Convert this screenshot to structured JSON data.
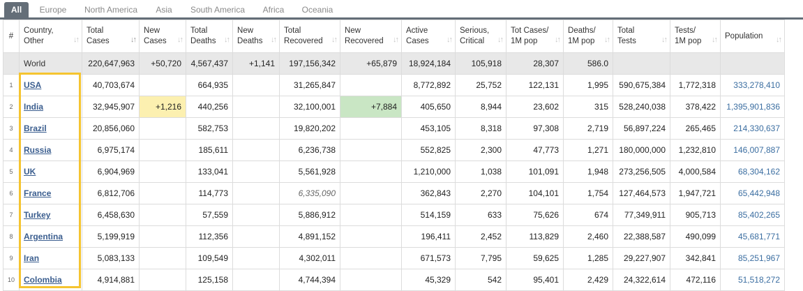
{
  "tabs": [
    "All",
    "Europe",
    "North America",
    "Asia",
    "South America",
    "Africa",
    "Oceania"
  ],
  "headers": {
    "rank": "#",
    "country": [
      "Country,",
      "Other"
    ],
    "total_cases": [
      "Total",
      "Cases"
    ],
    "new_cases": [
      "New",
      "Cases"
    ],
    "total_deaths": [
      "Total",
      "Deaths"
    ],
    "new_deaths": [
      "New",
      "Deaths"
    ],
    "total_recovered": [
      "Total",
      "Recovered"
    ],
    "new_recovered": [
      "New",
      "Recovered"
    ],
    "active_cases": [
      "Active",
      "Cases"
    ],
    "serious": [
      "Serious,",
      "Critical"
    ],
    "cases_per_m": [
      "Tot Cases/",
      "1M pop"
    ],
    "deaths_per_m": [
      "Deaths/",
      "1M pop"
    ],
    "total_tests": [
      "Total",
      "Tests"
    ],
    "tests_per_m": [
      "Tests/",
      "1M pop"
    ],
    "population": [
      "Population"
    ]
  },
  "world": {
    "country": "World",
    "total_cases": "220,647,963",
    "new_cases": "+50,720",
    "total_deaths": "4,567,437",
    "new_deaths": "+1,141",
    "total_recovered": "197,156,342",
    "new_recovered": "+65,879",
    "active_cases": "18,924,184",
    "serious": "105,918",
    "cases_per_m": "28,307",
    "deaths_per_m": "586.0",
    "total_tests": "",
    "tests_per_m": "",
    "population": ""
  },
  "rows": [
    {
      "rank": "1",
      "country": "USA",
      "total_cases": "40,703,674",
      "new_cases": "",
      "total_deaths": "664,935",
      "new_deaths": "",
      "total_recovered": "31,265,847",
      "new_recovered": "",
      "active_cases": "8,772,892",
      "serious": "25,752",
      "cases_per_m": "122,131",
      "deaths_per_m": "1,995",
      "total_tests": "590,675,384",
      "tests_per_m": "1,772,318",
      "population": "333,278,410"
    },
    {
      "rank": "2",
      "country": "India",
      "total_cases": "32,945,907",
      "new_cases": "+1,216",
      "total_deaths": "440,256",
      "new_deaths": "",
      "total_recovered": "32,100,001",
      "new_recovered": "+7,884",
      "active_cases": "405,650",
      "serious": "8,944",
      "cases_per_m": "23,602",
      "deaths_per_m": "315",
      "total_tests": "528,240,038",
      "tests_per_m": "378,422",
      "population": "1,395,901,836"
    },
    {
      "rank": "3",
      "country": "Brazil",
      "total_cases": "20,856,060",
      "new_cases": "",
      "total_deaths": "582,753",
      "new_deaths": "",
      "total_recovered": "19,820,202",
      "new_recovered": "",
      "active_cases": "453,105",
      "serious": "8,318",
      "cases_per_m": "97,308",
      "deaths_per_m": "2,719",
      "total_tests": "56,897,224",
      "tests_per_m": "265,465",
      "population": "214,330,637"
    },
    {
      "rank": "4",
      "country": "Russia",
      "total_cases": "6,975,174",
      "new_cases": "",
      "total_deaths": "185,611",
      "new_deaths": "",
      "total_recovered": "6,236,738",
      "new_recovered": "",
      "active_cases": "552,825",
      "serious": "2,300",
      "cases_per_m": "47,773",
      "deaths_per_m": "1,271",
      "total_tests": "180,000,000",
      "tests_per_m": "1,232,810",
      "population": "146,007,887"
    },
    {
      "rank": "5",
      "country": "UK",
      "total_cases": "6,904,969",
      "new_cases": "",
      "total_deaths": "133,041",
      "new_deaths": "",
      "total_recovered": "5,561,928",
      "new_recovered": "",
      "active_cases": "1,210,000",
      "serious": "1,038",
      "cases_per_m": "101,091",
      "deaths_per_m": "1,948",
      "total_tests": "273,256,505",
      "tests_per_m": "4,000,584",
      "population": "68,304,162"
    },
    {
      "rank": "6",
      "country": "France",
      "total_cases": "6,812,706",
      "new_cases": "",
      "total_deaths": "114,773",
      "new_deaths": "",
      "total_recovered": "6,335,090",
      "new_recovered": "",
      "active_cases": "362,843",
      "serious": "2,270",
      "cases_per_m": "104,101",
      "deaths_per_m": "1,754",
      "total_tests": "127,464,573",
      "tests_per_m": "1,947,721",
      "population": "65,442,948"
    },
    {
      "rank": "7",
      "country": "Turkey",
      "total_cases": "6,458,630",
      "new_cases": "",
      "total_deaths": "57,559",
      "new_deaths": "",
      "total_recovered": "5,886,912",
      "new_recovered": "",
      "active_cases": "514,159",
      "serious": "633",
      "cases_per_m": "75,626",
      "deaths_per_m": "674",
      "total_tests": "77,349,911",
      "tests_per_m": "905,713",
      "population": "85,402,265"
    },
    {
      "rank": "8",
      "country": "Argentina",
      "total_cases": "5,199,919",
      "new_cases": "",
      "total_deaths": "112,356",
      "new_deaths": "",
      "total_recovered": "4,891,152",
      "new_recovered": "",
      "active_cases": "196,411",
      "serious": "2,452",
      "cases_per_m": "113,829",
      "deaths_per_m": "2,460",
      "total_tests": "22,388,587",
      "tests_per_m": "490,099",
      "population": "45,681,771"
    },
    {
      "rank": "9",
      "country": "Iran",
      "total_cases": "5,083,133",
      "new_cases": "",
      "total_deaths": "109,549",
      "new_deaths": "",
      "total_recovered": "4,302,011",
      "new_recovered": "",
      "active_cases": "671,573",
      "serious": "7,795",
      "cases_per_m": "59,625",
      "deaths_per_m": "1,285",
      "total_tests": "29,227,907",
      "tests_per_m": "342,841",
      "population": "85,251,967"
    },
    {
      "rank": "10",
      "country": "Colombia",
      "total_cases": "4,914,881",
      "new_cases": "",
      "total_deaths": "125,158",
      "new_deaths": "",
      "total_recovered": "4,744,394",
      "new_recovered": "",
      "active_cases": "45,329",
      "serious": "542",
      "cases_per_m": "95,401",
      "deaths_per_m": "2,429",
      "total_tests": "24,322,614",
      "tests_per_m": "472,116",
      "population": "51,518,272"
    }
  ]
}
